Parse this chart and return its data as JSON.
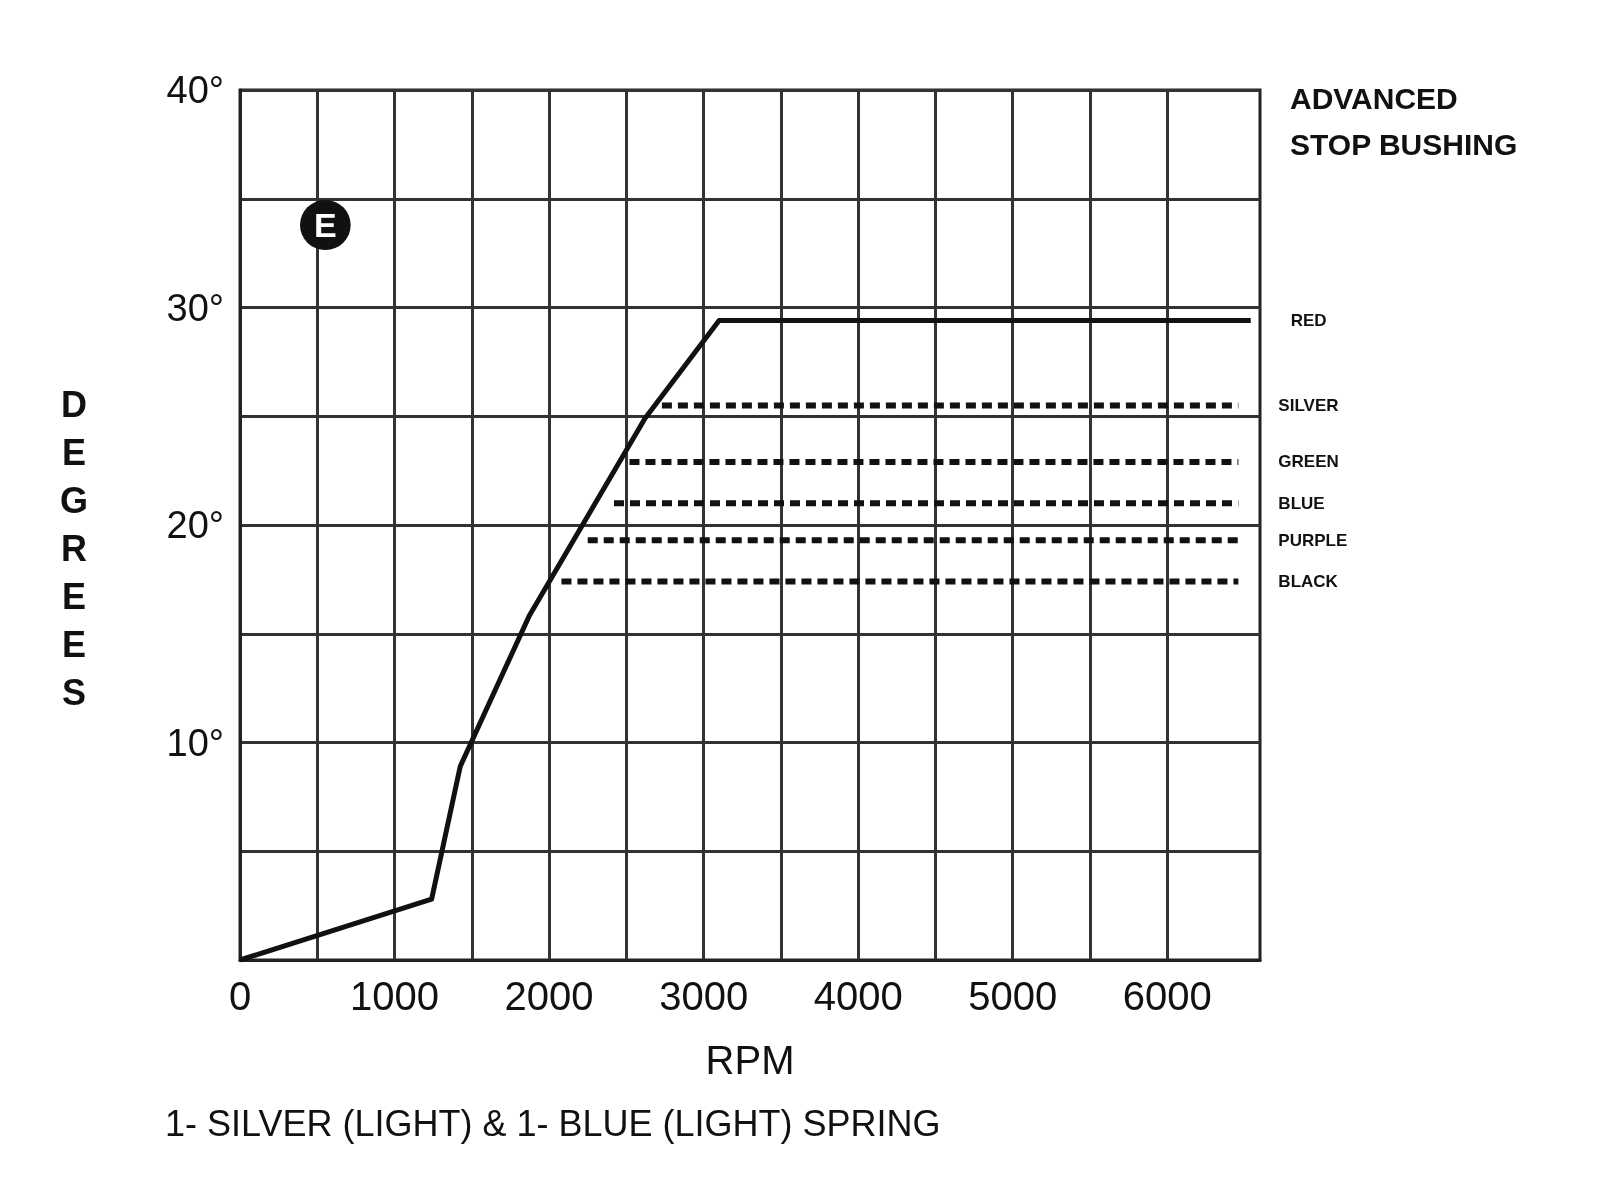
{
  "chart_data": {
    "type": "line",
    "title": "1- SILVER (LIGHT) & 1- BLUE (LIGHT) SPRING",
    "xlabel": "RPM",
    "ylabel": "DEGREES",
    "legend_title": "ADVANCED STOP BUSHING",
    "annotations": [
      "E"
    ],
    "xlim": [
      0,
      6600
    ],
    "ylim": [
      0,
      40
    ],
    "xticks": [
      0,
      {
        "value": 500,
        "label": null
      },
      1000,
      {
        "value": 1500,
        "label": null
      },
      2000,
      {
        "value": 2500,
        "label": null
      },
      3000,
      {
        "value": 3500,
        "label": null
      },
      4000,
      {
        "value": 4500,
        "label": null
      },
      5000,
      {
        "value": 5500,
        "label": null
      },
      6000
    ],
    "yticks": [
      {
        "value": 0,
        "label": null
      },
      {
        "value": 5,
        "label": null
      },
      {
        "value": 10,
        "label": "10°"
      },
      {
        "value": 15,
        "label": null
      },
      {
        "value": 20,
        "label": "20°"
      },
      {
        "value": 25,
        "label": null
      },
      {
        "value": 30,
        "label": "30°"
      },
      {
        "value": 35,
        "label": null
      },
      {
        "value": 40,
        "label": "40°"
      }
    ],
    "grid": true,
    "legend": false,
    "marker": "none",
    "series": [
      {
        "name": "RED",
        "color": "#111111",
        "line_style": "solid",
        "x": [
          0,
          1240,
          1425,
          1870,
          2620,
          3100,
          6540
        ],
        "values": [
          0,
          2.8,
          8.9,
          15.8,
          24.9,
          29.4,
          29.4
        ]
      },
      {
        "name": "SILVER",
        "color": "#111111",
        "line_style": "dashed",
        "x": [
          2730,
          6460
        ],
        "values": [
          25.5,
          25.5
        ]
      },
      {
        "name": "GREEN",
        "color": "#111111",
        "line_style": "dashed",
        "x": [
          2520,
          6460
        ],
        "values": [
          22.9,
          22.9
        ]
      },
      {
        "name": "BLUE",
        "color": "#111111",
        "line_style": "dashed",
        "x": [
          2420,
          6460
        ],
        "values": [
          21.0,
          21.0
        ]
      },
      {
        "name": "PURPLE",
        "color": "#111111",
        "line_style": "dashed",
        "x": [
          2250,
          6460
        ],
        "values": [
          19.3,
          19.3
        ]
      },
      {
        "name": "BLACK",
        "color": "#111111",
        "line_style": "dashed",
        "x": [
          2080,
          6460
        ],
        "values": [
          17.4,
          17.4
        ]
      }
    ]
  }
}
